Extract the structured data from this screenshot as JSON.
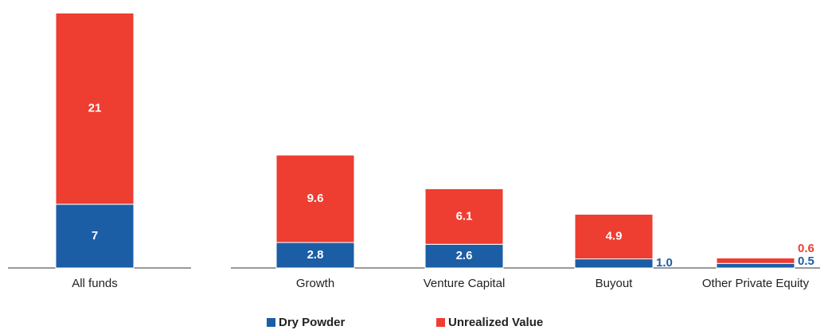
{
  "chart_data": [
    {
      "type": "bar",
      "stacked": true,
      "categories": [
        "All funds"
      ],
      "series": [
        {
          "color": "#1b5ea6",
          "values": [
            7
          ]
        },
        {
          "color": "#ee3d31",
          "values": [
            21
          ]
        }
      ]
    },
    {
      "type": "bar",
      "stacked": true,
      "categories": [
        "Growth",
        "Venture Capital",
        "Buyout",
        "Other Private Equity"
      ],
      "series": [
        {
          "name": "Dry Powder",
          "color": "#1b5ea6",
          "values": [
            2.8,
            2.6,
            1.0,
            0.5
          ],
          "value_labels": [
            "2.8",
            "2.6",
            "1.0",
            "0.5"
          ]
        },
        {
          "name": "Unrealized Value",
          "color": "#ee3d31",
          "values": [
            9.6,
            6.1,
            4.9,
            0.6
          ],
          "value_labels": [
            "9.6",
            "6.1",
            "4.9",
            "0.6"
          ]
        }
      ],
      "legend": "bottom"
    }
  ]
}
